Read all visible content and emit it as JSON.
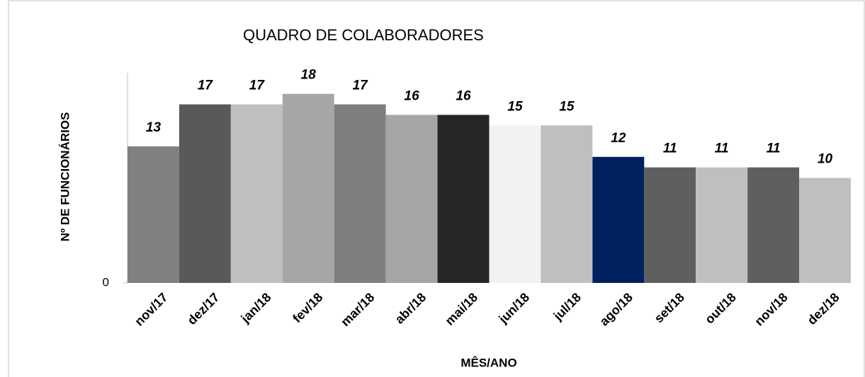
{
  "chart_data": {
    "type": "bar",
    "title": "QUADRO DE COLABORADORES",
    "x_label": "MÊS/ANO",
    "y_label": "Nº DE FUNCIONÁRIOS",
    "categories": [
      "nov/17",
      "dez/17",
      "jan/18",
      "fev/18",
      "mar/18",
      "abr/18",
      "mai/18",
      "jun/18",
      "jul/18",
      "ago/18",
      "set/18",
      "out/18",
      "nov/18",
      "dez/18"
    ],
    "values": [
      13,
      17,
      17,
      18,
      17,
      16,
      16,
      15,
      15,
      12,
      11,
      11,
      11,
      10
    ],
    "colors": [
      "#808080",
      "#595959",
      "#bfbfbf",
      "#a6a6a6",
      "#7f7f7f",
      "#a5a5a5",
      "#262626",
      "#f2f2f2",
      "#bfbfbf",
      "#002060",
      "#5f5f5f",
      "#bfbfbf",
      "#5f5f5f",
      "#bfbfbf"
    ],
    "ylim": [
      0,
      20
    ],
    "yticks": [
      0
    ],
    "grid": false
  }
}
